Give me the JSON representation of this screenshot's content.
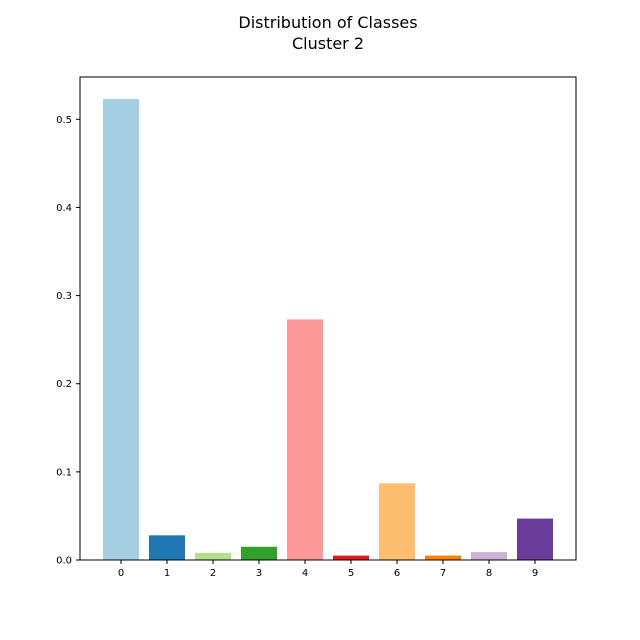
{
  "chart_data": {
    "type": "bar",
    "title": "Distribution of Classes",
    "subtitle": "Cluster 2",
    "xlabel": "",
    "ylabel": "",
    "categories": [
      "0",
      "1",
      "2",
      "3",
      "4",
      "5",
      "6",
      "7",
      "8",
      "9"
    ],
    "values": [
      0.523,
      0.028,
      0.008,
      0.015,
      0.273,
      0.005,
      0.087,
      0.005,
      0.009,
      0.047
    ],
    "colors": [
      "#a6cee3",
      "#1f78b4",
      "#b2df8a",
      "#33a02c",
      "#fb9a99",
      "#e31a1c",
      "#fdbf6f",
      "#ff7f00",
      "#cab2d6",
      "#6a3d9a"
    ],
    "ylim": [
      0,
      0.548
    ],
    "yticks": [
      "0.0",
      "0.1",
      "0.2",
      "0.3",
      "0.4",
      "0.5"
    ],
    "grid": false,
    "legend": "none"
  }
}
